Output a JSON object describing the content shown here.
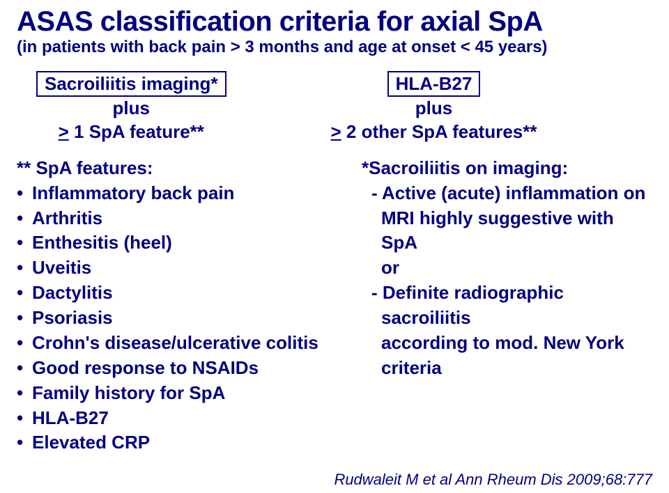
{
  "title": "ASAS classification criteria for axial SpA",
  "subtitle": "(in patients with back pain > 3 months and age at onset < 45 years)",
  "arm_left": {
    "box": "Sacroiliitis imaging*",
    "line2": "plus",
    "ge": ">",
    "line3_rest": " 1 SpA feature**"
  },
  "arm_right": {
    "box": "HLA-B27",
    "line2": "plus",
    "ge": ">",
    "line3_rest": " 2 other SpA features**"
  },
  "features_header": "** SpA features:",
  "features": [
    "Inflammatory back pain",
    "Arthritis",
    "Enthesitis (heel)",
    "Uveitis",
    "Dactylitis",
    "Psoriasis",
    "Crohn's disease/ulcerative colitis",
    "Good response to NSAIDs",
    "Family history for SpA",
    "HLA-B27",
    "Elevated CRP"
  ],
  "sacro_header": "*Sacroiliitis on imaging:",
  "sacro_lines": {
    "a1": "- Active (acute) inflammation on",
    "a2": "MRI highly suggestive with SpA",
    "or": "or",
    "b1": "- Definite radiographic sacroiliitis",
    "b2": "according to mod. New York",
    "b3": "criteria"
  },
  "citation": "Rudwaleit M et al Ann Rheum Dis 2009;68:777"
}
